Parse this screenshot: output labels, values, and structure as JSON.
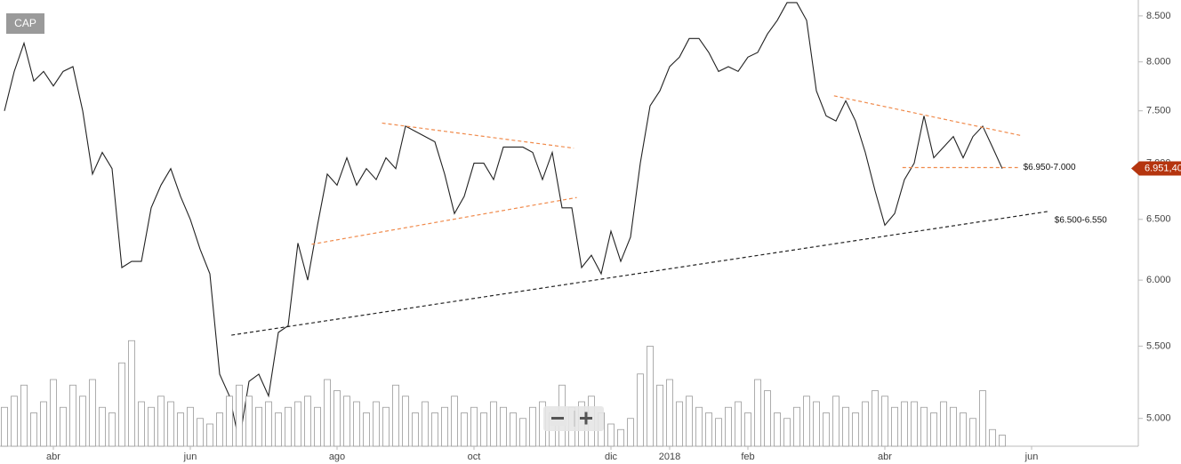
{
  "chart_data": {
    "type": "line",
    "categories": [
      null,
      null,
      null,
      null,
      null,
      "abr",
      null,
      null,
      null,
      null,
      null,
      null,
      null,
      null,
      null,
      null,
      null,
      null,
      null,
      "jun",
      null,
      null,
      null,
      null,
      null,
      null,
      null,
      null,
      null,
      null,
      null,
      null,
      null,
      null,
      "ago",
      null,
      null,
      null,
      null,
      null,
      null,
      null,
      null,
      null,
      null,
      null,
      null,
      null,
      "oct",
      null,
      null,
      null,
      null,
      null,
      null,
      null,
      null,
      null,
      null,
      null,
      null,
      null,
      "dic",
      null,
      null,
      null,
      null,
      null,
      "2018",
      null,
      null,
      null,
      null,
      null,
      null,
      null,
      "feb",
      null,
      null,
      null,
      null,
      null,
      null,
      null,
      null,
      null,
      null,
      null,
      null,
      null,
      "abr",
      null,
      null,
      null,
      null,
      null,
      null,
      null,
      null,
      null,
      null,
      null,
      null,
      null,
      null,
      "jun",
      null,
      null,
      null,
      null,
      null,
      null,
      null,
      null,
      null,
      null
    ],
    "series": [
      {
        "name": "CAP",
        "color": "#222222",
        "values": [
          7.5,
          7.9,
          8.2,
          7.8,
          7.9,
          7.75,
          7.9,
          7.95,
          7.5,
          6.9,
          7.1,
          6.95,
          6.1,
          6.15,
          6.15,
          6.6,
          6.8,
          6.95,
          6.7,
          6.5,
          6.25,
          6.05,
          5.3,
          5.15,
          4.85,
          5.25,
          5.3,
          5.15,
          5.6,
          5.65,
          6.3,
          6.0,
          6.45,
          6.9,
          6.8,
          7.05,
          6.8,
          6.95,
          6.85,
          7.05,
          6.95,
          7.35,
          7.3,
          7.25,
          7.2,
          6.9,
          6.55,
          6.7,
          7.0,
          7.0,
          6.85,
          7.15,
          7.15,
          7.15,
          7.1,
          6.85,
          7.1,
          6.6,
          6.6,
          6.1,
          6.2,
          6.05,
          6.4,
          6.15,
          6.35,
          7.0,
          7.55,
          7.7,
          7.95,
          8.05,
          8.25,
          8.25,
          8.1,
          7.9,
          7.95,
          7.9,
          8.05,
          8.1,
          8.3,
          8.45,
          8.65,
          8.65,
          8.45,
          7.7,
          7.45,
          7.4,
          7.6,
          7.4,
          7.1,
          6.75,
          6.45,
          6.55,
          6.85,
          7.0,
          7.45,
          7.05,
          7.15,
          7.25,
          7.05,
          7.25,
          7.35,
          7.15,
          6.95,
          null,
          null,
          null,
          null,
          null,
          null,
          null,
          null,
          null,
          null,
          null,
          null,
          null
        ]
      },
      {
        "type": "bar",
        "axis": "y2",
        "color": "#999999",
        "values": [
          35,
          45,
          55,
          30,
          40,
          60,
          35,
          55,
          45,
          60,
          35,
          30,
          75,
          95,
          40,
          35,
          45,
          40,
          30,
          35,
          25,
          20,
          30,
          45,
          55,
          45,
          35,
          40,
          30,
          35,
          40,
          45,
          35,
          60,
          50,
          45,
          40,
          30,
          40,
          35,
          55,
          45,
          30,
          40,
          30,
          35,
          45,
          30,
          35,
          30,
          40,
          35,
          30,
          25,
          35,
          40,
          30,
          55,
          35,
          40,
          45,
          30,
          20,
          15,
          25,
          65,
          90,
          55,
          60,
          40,
          45,
          35,
          30,
          25,
          35,
          40,
          30,
          60,
          50,
          30,
          25,
          35,
          45,
          40,
          30,
          45,
          35,
          30,
          40,
          50,
          45,
          35,
          40,
          40,
          35,
          30,
          40,
          35,
          30,
          25,
          50,
          15,
          10,
          null,
          null,
          null,
          null,
          null,
          null,
          null,
          null,
          null,
          null,
          null,
          null,
          null
        ]
      }
    ],
    "ylim": [
      4.82,
      8.68
    ],
    "log_scale": true,
    "yticks": [
      {
        "value": 5,
        "label": "5.000"
      },
      {
        "value": 5.5,
        "label": "5.500"
      },
      {
        "value": 6,
        "label": "6.000"
      },
      {
        "value": 6.5,
        "label": "6.500"
      },
      {
        "value": 7,
        "label": "7.000"
      },
      {
        "value": 7.5,
        "label": "7.500"
      },
      {
        "value": 8,
        "label": "8.000"
      },
      {
        "value": 8.5,
        "label": "8.500"
      }
    ],
    "y2lim": [
      0,
      100
    ],
    "grid": false,
    "last_price": {
      "value": 6.9514,
      "label": "6.951,40",
      "color": "#b5350f"
    },
    "trendlines": [
      {
        "x": [
          23.2,
          106.8
        ],
        "y": [
          5.58,
          6.57
        ],
        "color": "#222222",
        "label": "$6.500-6.550"
      },
      {
        "x": [
          38.6,
          58.2
        ],
        "y": [
          7.38,
          7.14
        ],
        "color": "#f08a4b"
      },
      {
        "x": [
          31.4,
          58.5
        ],
        "y": [
          6.29,
          6.69
        ],
        "color": "#f08a4b"
      },
      {
        "x": [
          84.8,
          103.9
        ],
        "y": [
          7.65,
          7.26
        ],
        "color": "#f08a4b"
      },
      {
        "x": [
          91.8,
          103.6
        ],
        "y": [
          6.96,
          6.96
        ],
        "color": "#f08a4b",
        "label": "$6.950-7.000"
      }
    ]
  }
}
